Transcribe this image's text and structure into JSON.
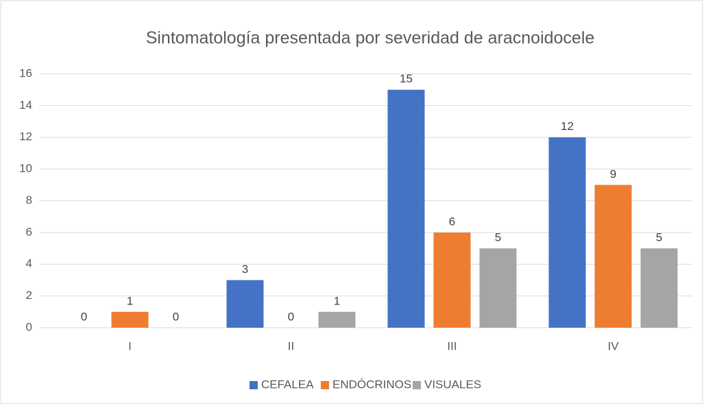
{
  "chart_data": {
    "type": "bar",
    "title": "Sintomatología presentada por severidad de aracnoidocele",
    "categories": [
      "I",
      "II",
      "III",
      "IV"
    ],
    "series": [
      {
        "name": "CEFALEA",
        "color": "#4472c4",
        "values": [
          0,
          3,
          15,
          12
        ]
      },
      {
        "name": "ENDÓCRINOS",
        "color": "#ed7d31",
        "values": [
          1,
          0,
          6,
          9
        ]
      },
      {
        "name": "VISUALES",
        "color": "#a5a5a5",
        "values": [
          0,
          1,
          5,
          5
        ]
      }
    ],
    "ylim": [
      0,
      16
    ],
    "yticks": [
      0,
      2,
      4,
      6,
      8,
      10,
      12,
      14,
      16
    ],
    "grid": true,
    "legend": "bottom"
  }
}
